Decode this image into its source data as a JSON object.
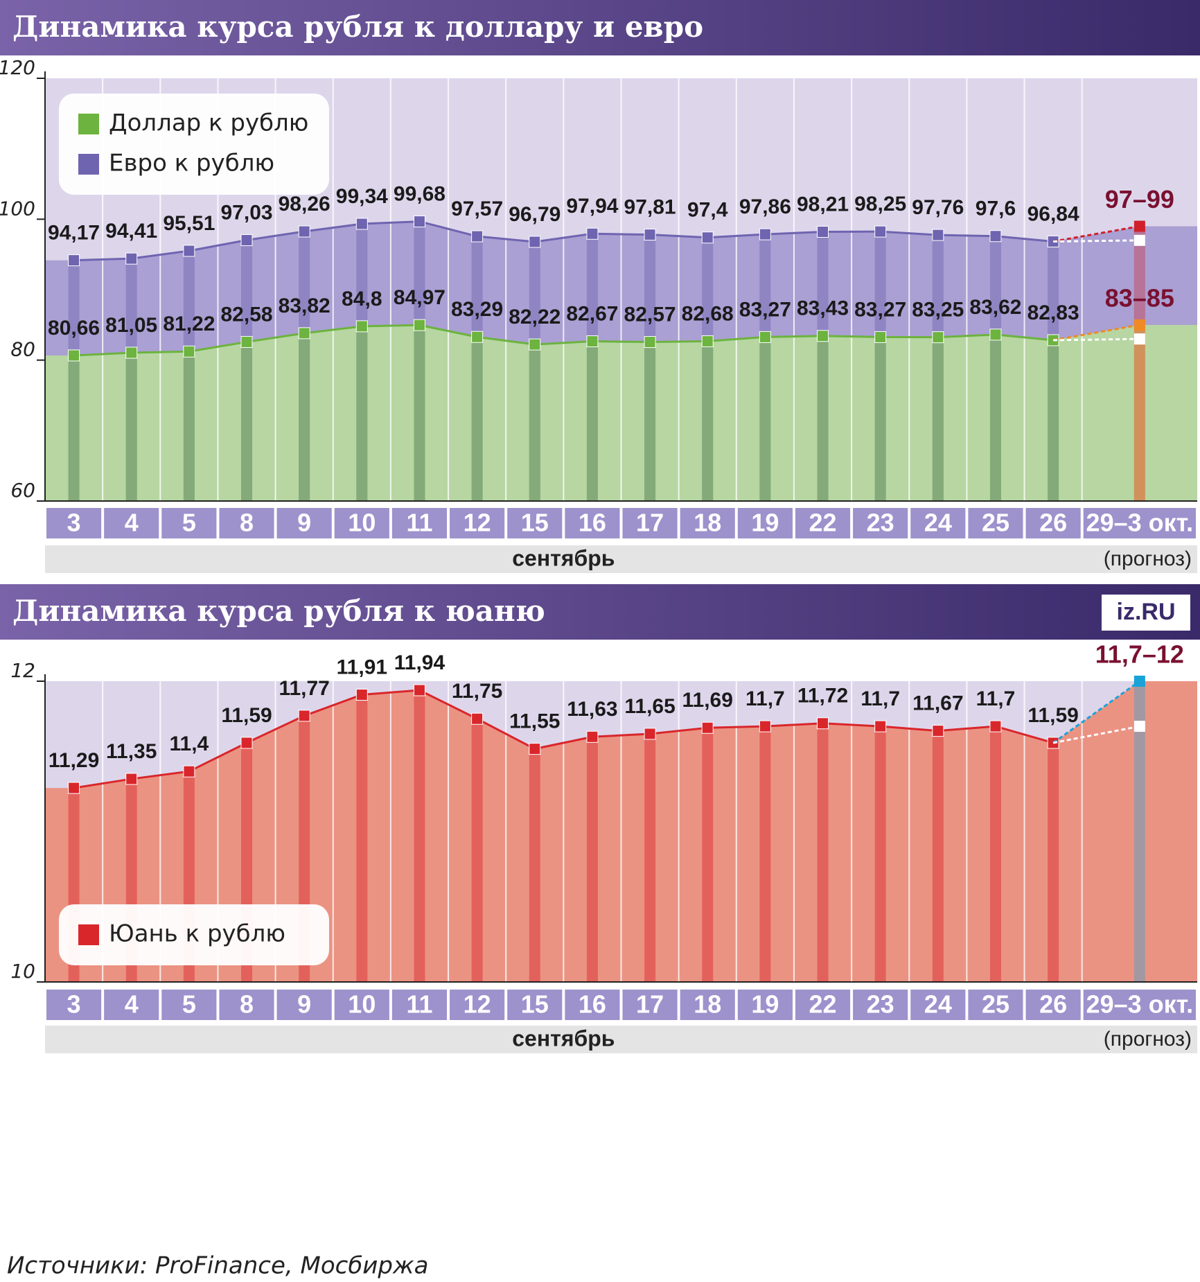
{
  "chart_data": [
    {
      "type": "line",
      "title": "Динамика курса рубля к доллару и евро",
      "categories": [
        "3",
        "4",
        "5",
        "8",
        "9",
        "10",
        "11",
        "12",
        "15",
        "16",
        "17",
        "18",
        "19",
        "22",
        "23",
        "24",
        "25",
        "26",
        "29–3 окт."
      ],
      "period_label": "сентябрь",
      "forecast_label": "(прогноз)",
      "ylim": [
        60,
        120
      ],
      "yticks": [
        60,
        80,
        100,
        120
      ],
      "series": [
        {
          "name": "Евро к рублю",
          "color": "#6f64b0",
          "area_color": "#a49ad0",
          "values": [
            94.17,
            94.41,
            95.51,
            97.03,
            98.26,
            99.34,
            99.68,
            97.57,
            96.79,
            97.94,
            97.81,
            97.4,
            97.86,
            98.21,
            98.25,
            97.76,
            97.6,
            96.84,
            null
          ],
          "value_labels": [
            "94,17",
            "94,41",
            "95,51",
            "97,03",
            "98,26",
            "99,34",
            "99,68",
            "97,57",
            "96,79",
            "97,94",
            "97,81",
            "97,4",
            "97,86",
            "98,21",
            "98,25",
            "97,76",
            "97,6",
            "96,84",
            null
          ],
          "forecast": {
            "low": 97,
            "high": 99,
            "label": "97–99",
            "color": "#d0202a"
          }
        },
        {
          "name": "Доллар к рублю",
          "color": "#6cb33f",
          "area_color": "#b8dc9c",
          "values": [
            80.66,
            81.05,
            81.22,
            82.58,
            83.82,
            84.8,
            84.97,
            83.29,
            82.22,
            82.67,
            82.57,
            82.68,
            83.27,
            83.43,
            83.27,
            83.25,
            83.62,
            82.83,
            null
          ],
          "value_labels": [
            "80,66",
            "81,05",
            "81,22",
            "82,58",
            "83,82",
            "84,8",
            "84,97",
            "83,29",
            "82,22",
            "82,67",
            "82,57",
            "82,68",
            "83,27",
            "83,43",
            "83,27",
            "83,25",
            "83,62",
            "82,83",
            null
          ],
          "forecast": {
            "low": 83,
            "high": 85,
            "label": "83–85",
            "color": "#f08a24"
          }
        }
      ]
    },
    {
      "type": "line",
      "title": "Динамика курса рубля к юаню",
      "logo": "iz.RU",
      "categories": [
        "3",
        "4",
        "5",
        "8",
        "9",
        "10",
        "11",
        "12",
        "15",
        "16",
        "17",
        "18",
        "19",
        "22",
        "23",
        "24",
        "25",
        "26",
        "29–3 окт."
      ],
      "period_label": "сентябрь",
      "forecast_label": "(прогноз)",
      "ylim": [
        10,
        12
      ],
      "yticks": [
        10,
        12
      ],
      "series": [
        {
          "name": "Юань к рублю",
          "color": "#d9262b",
          "area_color": "#ec8c78",
          "values": [
            11.29,
            11.35,
            11.4,
            11.59,
            11.77,
            11.91,
            11.94,
            11.75,
            11.55,
            11.63,
            11.65,
            11.69,
            11.7,
            11.72,
            11.7,
            11.67,
            11.7,
            11.59,
            null
          ],
          "value_labels": [
            "11,29",
            "11,35",
            "11,4",
            "11,59",
            "11,77",
            "11,91",
            "11,94",
            "11,75",
            "11,55",
            "11,63",
            "11,65",
            "11,69",
            "11,7",
            "11,72",
            "11,7",
            "11,67",
            "11,7",
            "11,59",
            null
          ],
          "forecast": {
            "low": 11.7,
            "high": 12,
            "label": "11,7–12",
            "color": "#1aa3d9"
          }
        }
      ]
    }
  ],
  "source": "Источники: ProFinance, Мосбиржа"
}
